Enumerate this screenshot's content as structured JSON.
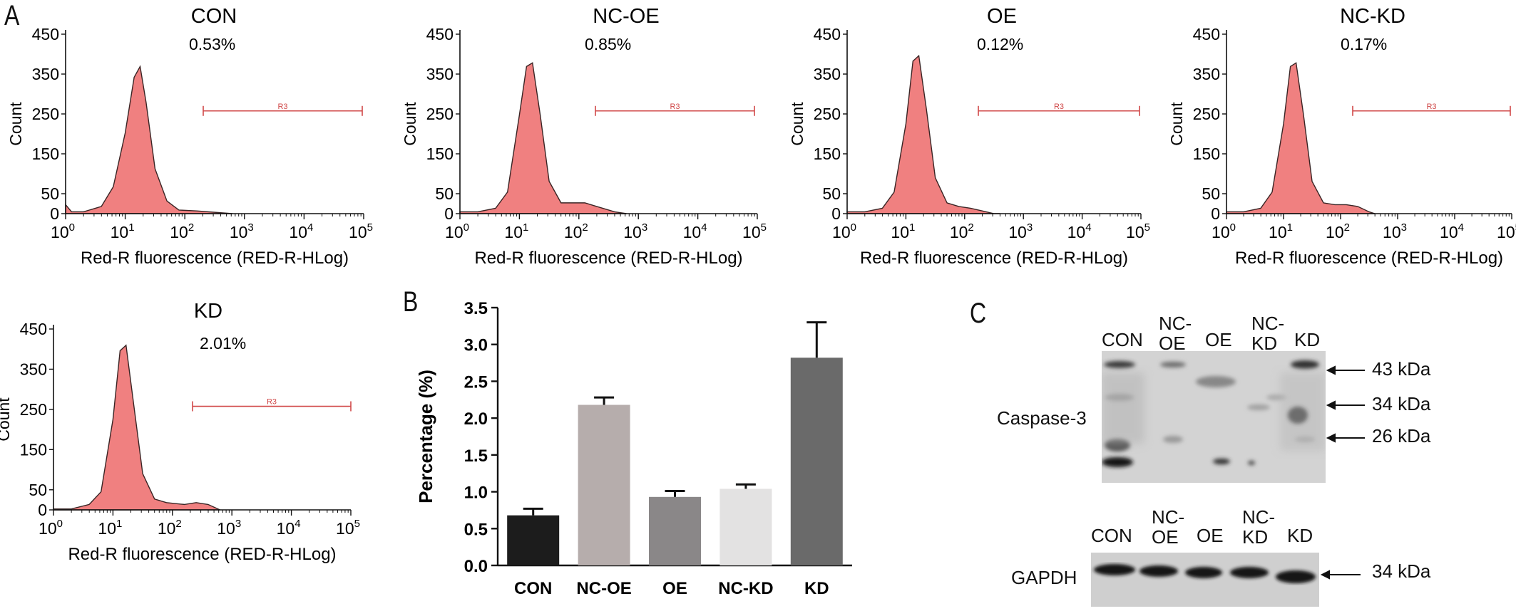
{
  "panel_labels": {
    "a": "A",
    "b": "B",
    "c": "C"
  },
  "flow": {
    "ylabel": "Count",
    "xlabel": "Red-R fluorescence (RED-R-HLog)",
    "yticks": [
      "0",
      "50",
      "150",
      "250",
      "350",
      "450"
    ],
    "xtick_base": "10",
    "xtick_exps": [
      "0",
      "1",
      "2",
      "3",
      "4",
      "5"
    ],
    "gate_label": "R3",
    "fill_color": "#f08080",
    "panels": [
      {
        "title": "CON",
        "percent": "0.53%"
      },
      {
        "title": "NC-OE",
        "percent": "0.85%"
      },
      {
        "title": "OE",
        "percent": "0.12%"
      },
      {
        "title": "NC-KD",
        "percent": "0.17%"
      },
      {
        "title": "KD",
        "percent": "2.01%"
      }
    ]
  },
  "chart_data": {
    "type": "bar",
    "categories": [
      "CON",
      "NC-OE",
      "OE",
      "NC-KD",
      "KD"
    ],
    "values": [
      0.68,
      2.18,
      0.93,
      1.04,
      2.82
    ],
    "errors": [
      0.09,
      0.1,
      0.08,
      0.06,
      0.48
    ],
    "colors": [
      "#1c1c1c",
      "#b6adac",
      "#8a8788",
      "#e3e2e2",
      "#6a6a6a"
    ],
    "ylabel": "Percentage (%)",
    "xlabel": "",
    "ylim": [
      0,
      3.5
    ],
    "yticks": [
      "0.0",
      "0.5",
      "1.0",
      "1.5",
      "2.0",
      "2.5",
      "3.0",
      "3.5"
    ],
    "grid": false
  },
  "western": {
    "lanes": [
      "CON",
      "NC-\nOE",
      "OE",
      "NC-\nKD",
      "KD"
    ],
    "lane_con": "CON",
    "lane_ncoe_1": "NC-",
    "lane_ncoe_2": "OE",
    "lane_oe": "OE",
    "lane_nckd_1": "NC-",
    "lane_nckd_2": "KD",
    "lane_kd": "KD",
    "caspase_label": "Caspase-3",
    "gapdh_label": "GAPDH",
    "markers": [
      "43 kDa",
      "34 kDa",
      "26 kDa"
    ],
    "gapdh_marker": "34 kDa"
  }
}
